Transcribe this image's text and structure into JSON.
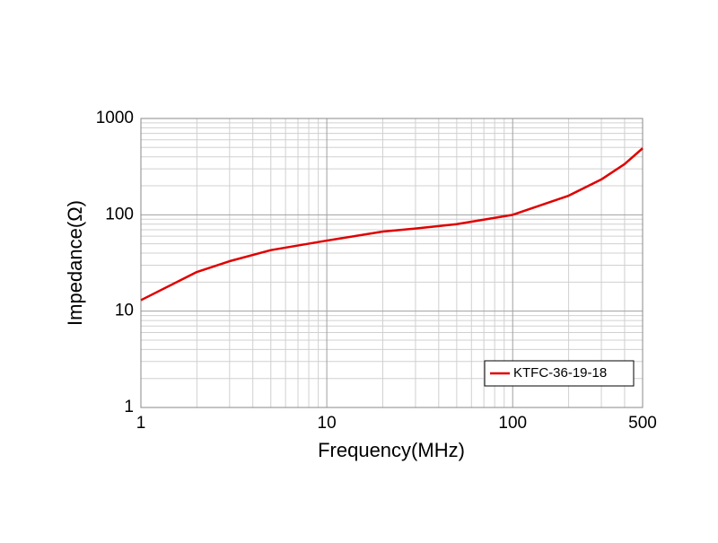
{
  "chart_data": {
    "type": "line",
    "x_label": "Frequency(MHz)",
    "y_label": "Impedance(Ω)",
    "x": [
      1,
      2,
      3,
      5,
      10,
      20,
      30,
      50,
      100,
      200,
      300,
      400,
      500
    ],
    "series": [
      {
        "name": "KTFC-36-19-18",
        "color": "#e00000",
        "values": [
          13,
          25.5,
          33,
          43,
          54,
          67,
          72,
          80,
          100,
          158,
          233,
          336,
          490
        ]
      }
    ],
    "xlim": [
      1,
      500
    ],
    "ylim": [
      1,
      1000
    ],
    "xticks": [
      1,
      10,
      100,
      500
    ],
    "yticks": [
      1,
      10,
      100,
      1000
    ],
    "xscale": "log",
    "yscale": "log",
    "grid": true,
    "legend": "lower right"
  }
}
